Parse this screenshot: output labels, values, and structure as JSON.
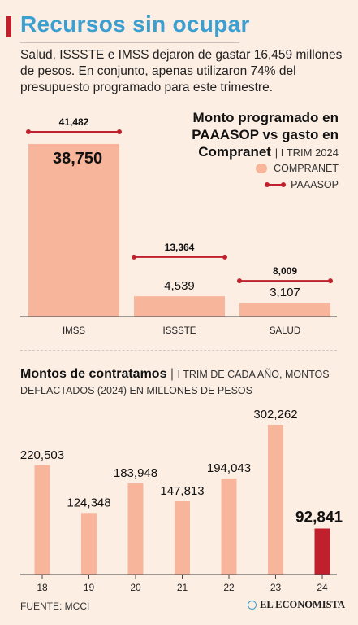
{
  "header": {
    "title": "Recursos sin ocupar",
    "subtitle": "Salud, ISSSTE e IMSS dejaron de gastar 16,459 millones de pesos. En conjunto, apenas utilizaron 74% del presupuesto programado para este trimestre."
  },
  "colors": {
    "bar": "#f7b59c",
    "accent": "#c0202c",
    "title": "#3b9fcf"
  },
  "chart_data": [
    {
      "type": "bar",
      "title": "Monto programado en PAAASOP vs gasto en Compranet",
      "period": "I TRIM 2024",
      "legend": [
        "COMPRANET",
        "PAAASOP"
      ],
      "legend_position": "top-right",
      "categories": [
        "IMSS",
        "ISSSTE",
        "SALUD"
      ],
      "series": [
        {
          "name": "COMPRANET",
          "values": [
            38750,
            4539,
            3107
          ],
          "labels": [
            "38,750",
            "4,539",
            "3,107"
          ]
        },
        {
          "name": "PAAASOP",
          "values": [
            41482,
            13364,
            8009
          ],
          "labels": [
            "41,482",
            "13,364",
            "8,009"
          ]
        }
      ],
      "ylim": [
        0,
        41482
      ],
      "grid": false
    },
    {
      "type": "bar",
      "title": "Montos de contratamos",
      "title_rest": "I TRIM DE CADA AÑO, MONTOS DEFLACTADOS (2024) EN MILLONES DE PESOS",
      "categories": [
        "18",
        "19",
        "20",
        "21",
        "22",
        "23",
        "24"
      ],
      "values": [
        220503,
        124348,
        183948,
        147813,
        194043,
        302262,
        92841
      ],
      "labels": [
        "220,503",
        "124,348",
        "183,948",
        "147,813",
        "194,043",
        "302,262",
        "92,841"
      ],
      "highlight_index": 6,
      "grid": false
    }
  ],
  "footer": {
    "source": "FUENTE: MCCI",
    "brand": "EL ECONOMISTA"
  }
}
